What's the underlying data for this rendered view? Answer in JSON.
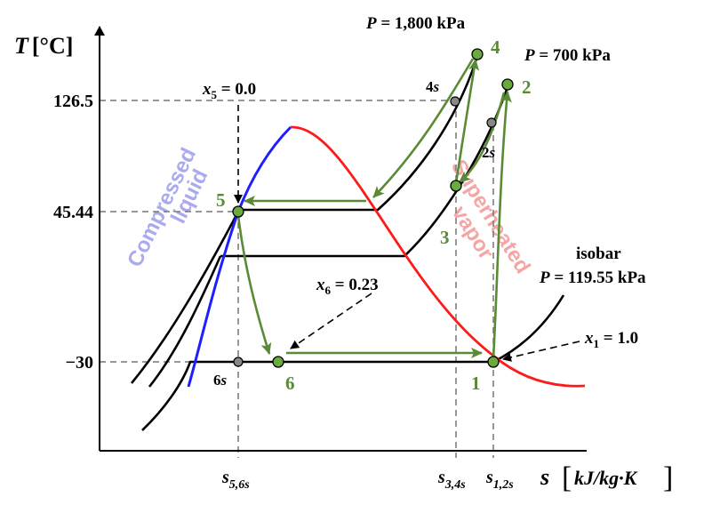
{
  "colors": {
    "process_green": "#5a8a35",
    "point_green": "#6aab3f",
    "dome_liquid_blue": "#1e1eff",
    "dome_vapor_red": "#ff1a1a",
    "compressed_text": "#aaaaee",
    "superheated_text": "#f4a6a6",
    "grey_point": "#888888"
  },
  "axes": {
    "y_label_symbol": "T",
    "y_label_unit": "[°C]",
    "x_label_symbol": "s",
    "x_label_unit": "kJ/kg·K",
    "y_ticks": [
      "126.5",
      "45.44",
      "−30"
    ],
    "x_ticks": {
      "s56": {
        "base": "s",
        "sub": "5,6s"
      },
      "s34": {
        "base": "s",
        "sub": "3,4s"
      },
      "s12": {
        "base": "s",
        "sub": "1,2s"
      }
    }
  },
  "regions": {
    "compressed_line1": "Compressed",
    "compressed_line2": "liquid",
    "superheated_line1": "Superheated",
    "superheated_line2": "vapor"
  },
  "annotations": {
    "p_high": {
      "sym": "P",
      "text": " = 1,800 kPa"
    },
    "p_mid": {
      "sym": "P",
      "text": " = 700 kPa"
    },
    "isobar_word": "isobar",
    "p_low": {
      "sym": "P",
      "text": " = 119.55 kPa"
    },
    "x5": {
      "sym": "x",
      "sub": "5",
      "text": " = 0.0"
    },
    "x6": {
      "sym": "x",
      "sub": "6",
      "text": " = 0.23"
    },
    "x1": {
      "sym": "x",
      "sub": "1",
      "text": " = 1.0"
    }
  },
  "states": [
    {
      "id": "1",
      "label": "1",
      "kind": "actual"
    },
    {
      "id": "2",
      "label": "2",
      "kind": "actual"
    },
    {
      "id": "3",
      "label": "3",
      "kind": "actual"
    },
    {
      "id": "4",
      "label": "4",
      "kind": "actual"
    },
    {
      "id": "5",
      "label": "5",
      "kind": "actual"
    },
    {
      "id": "6",
      "label": "6",
      "kind": "actual"
    },
    {
      "id": "2s",
      "label_num": "2",
      "label_s": "s",
      "kind": "isentropic"
    },
    {
      "id": "4s",
      "label_num": "4",
      "label_s": "s",
      "kind": "isentropic"
    },
    {
      "id": "6s",
      "label_num": "6",
      "label_s": "s",
      "kind": "isentropic"
    }
  ]
}
